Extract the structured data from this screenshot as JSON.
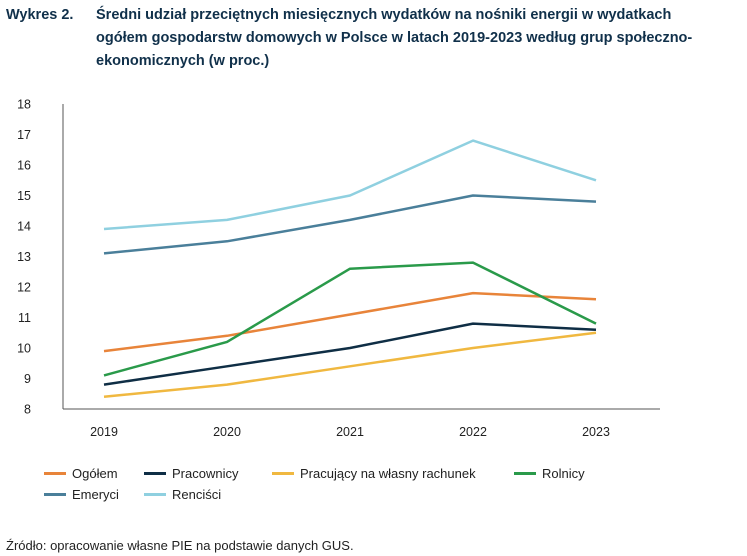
{
  "figure": {
    "number": "Wykres 2.",
    "title": "Średni udział przeciętnych miesięcznych wydatków na nośniki energii w wydatkach ogółem gospodarstw domowych w Polsce w latach 2019-2023 według grup społeczno-ekonomicznych (w proc.)"
  },
  "source": "Źródło: opracowanie własne PIE na podstawie danych GUS.",
  "chart_data": {
    "type": "line",
    "title": "Średni udział przeciętnych miesięcznych wydatków na nośniki energii w wydatkach ogółem gospodarstw domowych w Polsce w latach 2019-2023 według grup społeczno-ekonomicznych (w proc.)",
    "categories": [
      "2019",
      "2020",
      "2021",
      "2022",
      "2023"
    ],
    "ylim": [
      8,
      18
    ],
    "yticks": [
      8,
      9,
      10,
      11,
      12,
      13,
      14,
      15,
      16,
      17,
      18
    ],
    "grid": false,
    "legend_position": "bottom",
    "series": [
      {
        "name": "Ogółem",
        "color": "#e8843a",
        "values": [
          9.9,
          10.4,
          11.1,
          11.8,
          11.6
        ]
      },
      {
        "name": "Pracownicy",
        "color": "#0f2e45",
        "values": [
          8.8,
          9.4,
          10.0,
          10.8,
          10.6
        ]
      },
      {
        "name": "Pracujący na własny rachunek",
        "color": "#f0b840",
        "values": [
          8.4,
          8.8,
          9.4,
          10.0,
          10.5
        ]
      },
      {
        "name": "Rolnicy",
        "color": "#2a9a4a",
        "values": [
          9.1,
          10.2,
          12.6,
          12.8,
          10.8
        ]
      },
      {
        "name": "Emeryci",
        "color": "#4a7f9a",
        "values": [
          13.1,
          13.5,
          14.2,
          15.0,
          14.8
        ]
      },
      {
        "name": "Renciści",
        "color": "#8fd0e0",
        "values": [
          13.9,
          14.2,
          15.0,
          16.8,
          15.5
        ]
      }
    ]
  }
}
